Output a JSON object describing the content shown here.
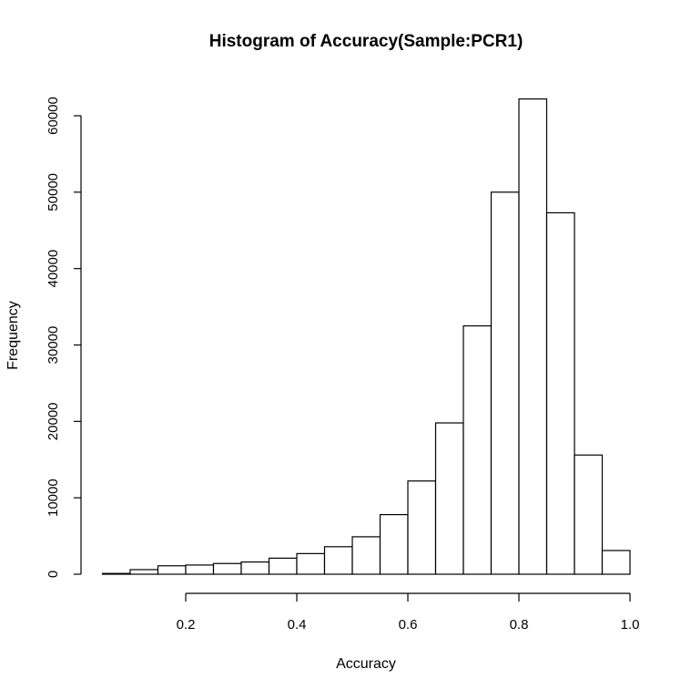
{
  "chart_data": {
    "type": "bar",
    "title": "Histogram of Accuracy(Sample:PCR1)",
    "xlabel": "Accuracy",
    "ylabel": "Frequency",
    "xlim": [
      0.05,
      1.0
    ],
    "ylim": [
      0,
      62000
    ],
    "x_ticks": [
      0.2,
      0.4,
      0.6,
      0.8,
      1.0
    ],
    "x_tick_labels": [
      "0.2",
      "0.4",
      "0.6",
      "0.8",
      "1.0"
    ],
    "y_ticks": [
      0,
      10000,
      20000,
      30000,
      40000,
      50000,
      60000
    ],
    "y_tick_labels": [
      "0",
      "10000",
      "20000",
      "30000",
      "40000",
      "50000",
      "60000"
    ],
    "bins": [
      {
        "start": 0.05,
        "end": 0.1,
        "value": 100
      },
      {
        "start": 0.1,
        "end": 0.15,
        "value": 600
      },
      {
        "start": 0.15,
        "end": 0.2,
        "value": 1100
      },
      {
        "start": 0.2,
        "end": 0.25,
        "value": 1200
      },
      {
        "start": 0.25,
        "end": 0.3,
        "value": 1400
      },
      {
        "start": 0.3,
        "end": 0.35,
        "value": 1600
      },
      {
        "start": 0.35,
        "end": 0.4,
        "value": 2100
      },
      {
        "start": 0.4,
        "end": 0.45,
        "value": 2700
      },
      {
        "start": 0.45,
        "end": 0.5,
        "value": 3600
      },
      {
        "start": 0.5,
        "end": 0.55,
        "value": 4900
      },
      {
        "start": 0.55,
        "end": 0.6,
        "value": 7800
      },
      {
        "start": 0.6,
        "end": 0.65,
        "value": 12200
      },
      {
        "start": 0.65,
        "end": 0.7,
        "value": 19800
      },
      {
        "start": 0.7,
        "end": 0.75,
        "value": 32500
      },
      {
        "start": 0.75,
        "end": 0.8,
        "value": 50000
      },
      {
        "start": 0.8,
        "end": 0.85,
        "value": 62200
      },
      {
        "start": 0.85,
        "end": 0.9,
        "value": 47300
      },
      {
        "start": 0.9,
        "end": 0.95,
        "value": 15600
      },
      {
        "start": 0.95,
        "end": 1.0,
        "value": 3100
      }
    ],
    "grid": false,
    "colors": {
      "bar_fill": "#ffffff",
      "bar_stroke": "#000000"
    }
  }
}
